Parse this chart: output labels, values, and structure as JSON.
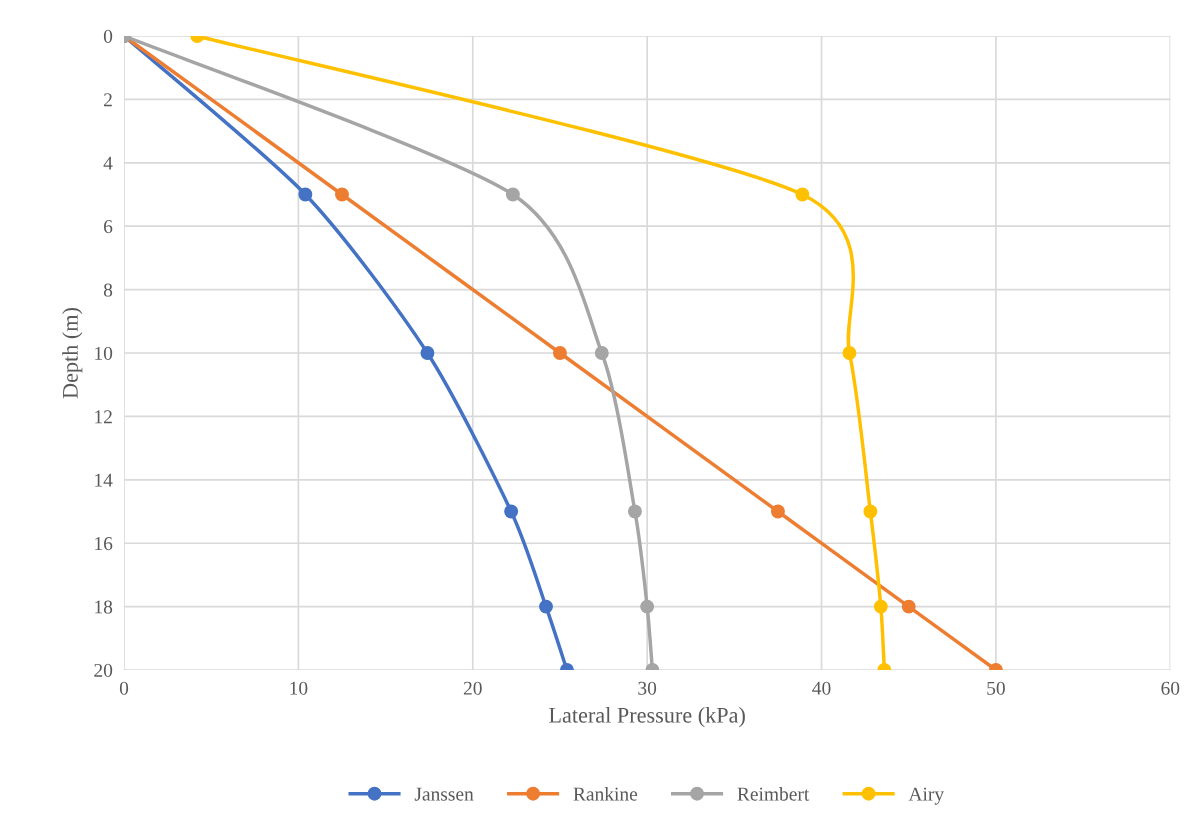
{
  "chart_data": {
    "type": "line",
    "xlabel": "Lateral Pressure (kPa)",
    "ylabel": "Depth (m)",
    "xlim": [
      0,
      60
    ],
    "xticks": [
      0,
      10,
      20,
      30,
      40,
      50,
      60
    ],
    "ylim": [
      20,
      0
    ],
    "yticks": [
      0,
      2,
      4,
      6,
      8,
      10,
      12,
      14,
      16,
      18,
      20
    ],
    "grid": true,
    "legend": "bottom",
    "marker": "circle",
    "line_style": "solid",
    "series": [
      {
        "name": "Janssen",
        "color": "#4472c4",
        "x": [
          0,
          10.4,
          17.4,
          22.2,
          24.2,
          25.4
        ],
        "values": [
          0,
          5,
          10,
          15,
          18,
          20
        ]
      },
      {
        "name": "Rankine",
        "color": "#ed7d31",
        "x": [
          0,
          12.5,
          25,
          37.5,
          45,
          50
        ],
        "values": [
          0,
          5,
          10,
          15,
          18,
          20
        ]
      },
      {
        "name": "Reimbert",
        "color": "#a5a5a5",
        "x": [
          0,
          22.3,
          27.4,
          29.3,
          30.0,
          30.3
        ],
        "values": [
          0,
          5,
          10,
          15,
          18,
          20
        ]
      },
      {
        "name": "Airy",
        "color": "#ffc000",
        "x": [
          4.2,
          38.9,
          41.6,
          42.8,
          43.4,
          43.6
        ],
        "values": [
          0,
          5,
          10,
          15,
          18,
          20
        ]
      }
    ]
  }
}
